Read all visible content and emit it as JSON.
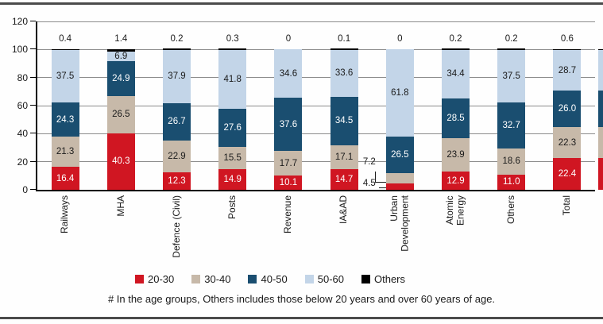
{
  "chart_data": {
    "type": "bar",
    "stacked": true,
    "unit": "percent share of age groups",
    "title": "",
    "xlabel": "",
    "ylabel": "",
    "ylim": [
      0,
      120
    ],
    "yticks": [
      0,
      20,
      40,
      60,
      80,
      100,
      120
    ],
    "grid": true,
    "legend_position": "bottom",
    "categories": [
      "Railways",
      "MHA",
      "Defence (Civil)",
      "Posts",
      "Revenue",
      "IA&AD",
      "Urban\nDevelopment",
      "Atomic\nEnergy",
      "Others",
      "Total"
    ],
    "series": [
      {
        "name": "20-30",
        "color": "#d01622",
        "label_color": "#ffffff",
        "values": [
          16.4,
          40.3,
          12.3,
          14.9,
          10.1,
          14.7,
          4.5,
          12.9,
          11.0,
          22.4
        ],
        "labels": [
          "16.4",
          "40.3",
          "12.3",
          "14.9",
          "10.1",
          "14.7",
          "4.5",
          "12.9",
          "11.0",
          "22.4"
        ]
      },
      {
        "name": "30-40",
        "color": "#c7b9a9",
        "label_color": "#1a1a1a",
        "values": [
          21.3,
          26.5,
          22.9,
          15.5,
          17.7,
          17.1,
          7.2,
          23.9,
          18.6,
          22.3
        ],
        "labels": [
          "21.3",
          "26.5",
          "22.9",
          "15.5",
          "17.7",
          "17.1",
          "7.2",
          "23.9",
          "18.6",
          "22.3"
        ]
      },
      {
        "name": "40-50",
        "color": "#1a4e70",
        "label_color": "#ffffff",
        "values": [
          24.3,
          24.9,
          26.7,
          27.6,
          37.6,
          34.5,
          26.5,
          28.5,
          32.7,
          26.0
        ],
        "labels": [
          "24.3",
          "24.9",
          "26.7",
          "27.6",
          "37.6",
          "34.5",
          "26.5",
          "28.5",
          "32.7",
          "26.0"
        ]
      },
      {
        "name": "50-60",
        "color": "#c3d5e8",
        "label_color": "#1a1a1a",
        "values": [
          37.5,
          6.9,
          37.9,
          41.8,
          34.6,
          33.6,
          61.8,
          34.4,
          37.5,
          28.7
        ],
        "labels": [
          "37.5",
          "6.9",
          "37.9",
          "41.8",
          "34.6",
          "33.6",
          "61.8",
          "34.4",
          "37.5",
          "28.7"
        ]
      },
      {
        "name": "Others",
        "color": "#000000",
        "label_color": "#1a1a1a",
        "position": "above",
        "values": [
          0.4,
          1.4,
          0.2,
          0.3,
          0,
          0.1,
          0,
          0.2,
          0.2,
          0.6
        ],
        "labels": [
          "0.4",
          "1.4",
          "0.2",
          "0.3",
          "0",
          "0.1",
          "0",
          "0.2",
          "0.2",
          "0.6"
        ]
      }
    ],
    "callouts": [
      {
        "category_index": 6,
        "series_index": 0,
        "label": "4.5"
      },
      {
        "category_index": 6,
        "series_index": 1,
        "label": "7.2"
      }
    ],
    "footnote": "# In the age groups, Others includes those below 20 years and over 60 years of age.",
    "clipped_duplicate_bar_at_right_edge": "Total",
    "colors": {
      "gridline": "#8c8c8c",
      "axis": "#000000",
      "frame": "#4b4b4b",
      "text": "#1a1a1a"
    }
  }
}
